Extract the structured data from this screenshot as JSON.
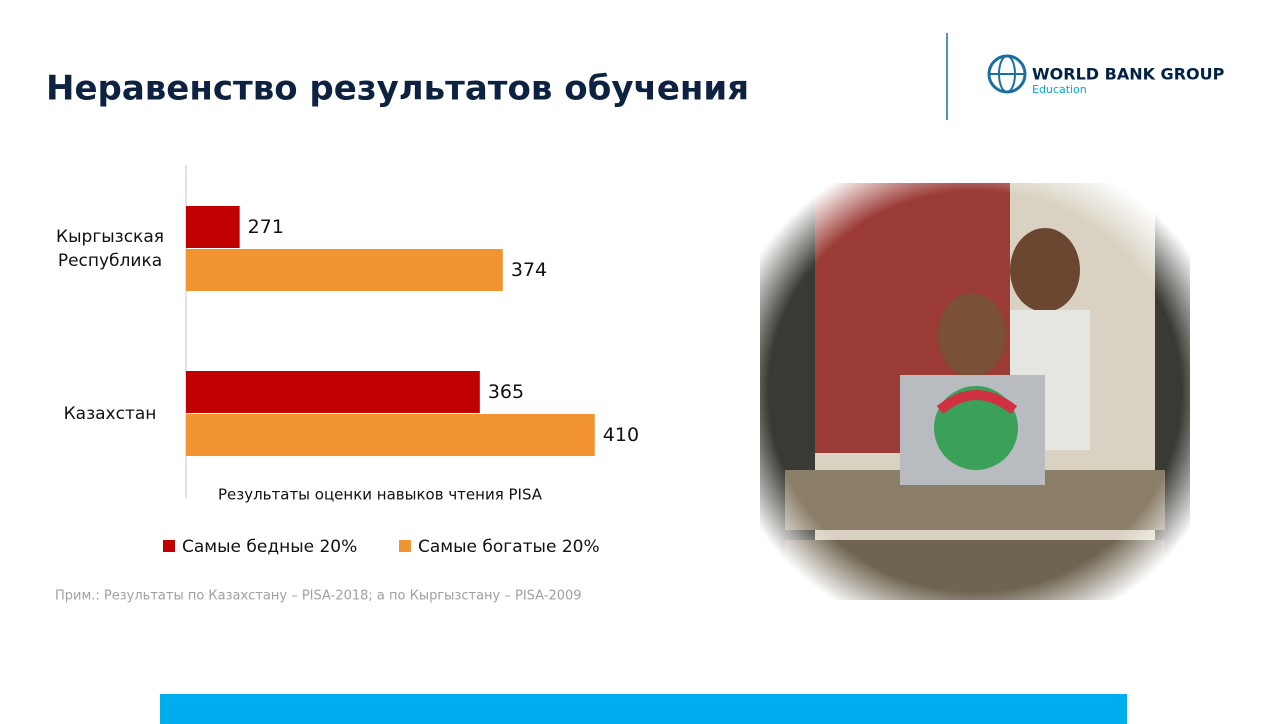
{
  "slide_title": "Неравенство результатов обучения",
  "logo": {
    "name": "WORLD BANK GROUP",
    "unit": "Education"
  },
  "note": "Прим.: Результаты по Казахстану – PISA-2018; а по Кыргызстану – PISA-2009",
  "chart_data": {
    "type": "hbar",
    "x_label": "Результаты оценки навыков чтения PISA",
    "categories": [
      "Кыргызская Республика",
      "Казахстан"
    ],
    "series": [
      {
        "name": "Самые бедные 20%",
        "color": "#c00000",
        "values": [
          271,
          365
        ]
      },
      {
        "name": "Самые богатые 20%",
        "color": "#f39433",
        "values": [
          374,
          410
        ]
      }
    ],
    "xlim": [
      250,
      450
    ]
  }
}
